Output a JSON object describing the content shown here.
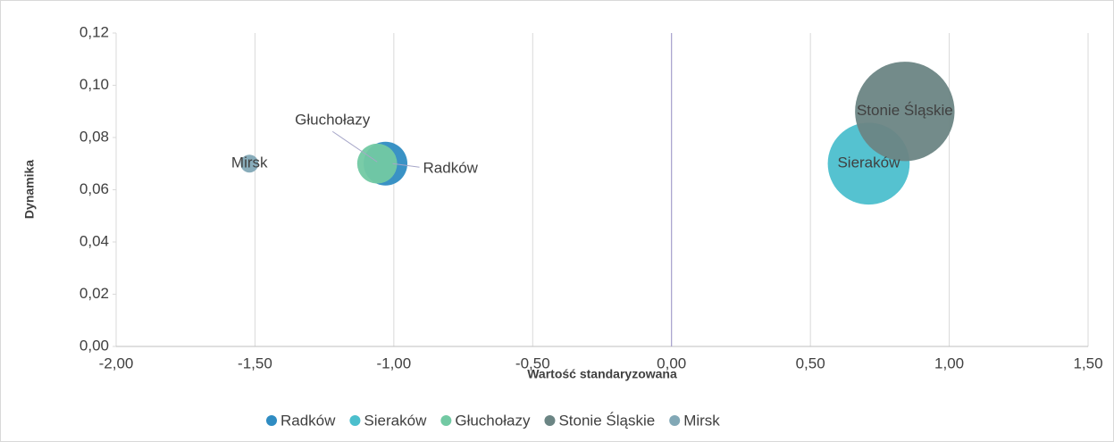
{
  "chart_data": {
    "type": "bubble",
    "xlabel": "Wartość standaryzowana",
    "ylabel": "Dynamika",
    "xlim": [
      -2,
      1.5
    ],
    "ylim": [
      0,
      0.12
    ],
    "xticks": [
      {
        "value": -2,
        "label": "-2,00"
      },
      {
        "value": -1.5,
        "label": "-1,50"
      },
      {
        "value": -1,
        "label": "-1,00"
      },
      {
        "value": -0.5,
        "label": "-0,50"
      },
      {
        "value": 0,
        "label": "0,00"
      },
      {
        "value": 0.5,
        "label": "0,50"
      },
      {
        "value": 1,
        "label": "1,00"
      },
      {
        "value": 1.5,
        "label": "1,50"
      }
    ],
    "yticks": [
      {
        "value": 0,
        "label": "0,00"
      },
      {
        "value": 0.02,
        "label": "0,02"
      },
      {
        "value": 0.04,
        "label": "0,04"
      },
      {
        "value": 0.06,
        "label": "0,06"
      },
      {
        "value": 0.08,
        "label": "0,08"
      },
      {
        "value": 0.1,
        "label": "0,10"
      },
      {
        "value": 0.12,
        "label": "0,12"
      }
    ],
    "grid": "x",
    "legend": "bottom",
    "series": [
      {
        "name": "Radków",
        "color": "#2f8cc2",
        "x": [
          -1.03
        ],
        "values": [
          0.07
        ],
        "sizes": [
          6
        ]
      },
      {
        "name": "Sieraków",
        "color": "#4cbfcd",
        "x": [
          0.71
        ],
        "values": [
          0.07
        ],
        "sizes": [
          21
        ]
      },
      {
        "name": "Głuchołazy",
        "color": "#72c9a3",
        "x": [
          -1.06
        ],
        "values": [
          0.07
        ],
        "sizes": [
          5
        ]
      },
      {
        "name": "Stonie Śląskie",
        "color": "#6b8584",
        "x": [
          0.84
        ],
        "values": [
          0.09
        ],
        "sizes": [
          31
        ]
      },
      {
        "name": "Mirsk",
        "color": "#82a8b6",
        "x": [
          -1.52
        ],
        "values": [
          0.07
        ],
        "sizes": [
          1
        ]
      }
    ]
  }
}
